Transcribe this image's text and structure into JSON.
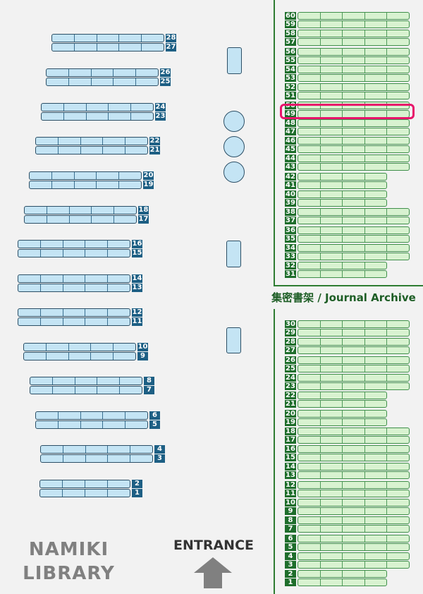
{
  "library_name": "NAMIKI LIBRARY",
  "entrance_label": "ENTRANCE",
  "archive_title": "集密書架 / Journal Archive",
  "highlighted_shelf": "49",
  "colors": {
    "open_shelf": "#c4e4f4",
    "archive_shelf": "#d8f2d0",
    "highlight": "#e8156b",
    "archive_border": "#2e7d32"
  },
  "open_shelves": [
    {
      "label": "28",
      "cells": 5
    },
    {
      "label": "27",
      "cells": 5
    },
    {
      "label": "26",
      "cells": 5
    },
    {
      "label": "25",
      "cells": 5
    },
    {
      "label": "24",
      "cells": 5
    },
    {
      "label": "23",
      "cells": 5
    },
    {
      "label": "22",
      "cells": 5
    },
    {
      "label": "21",
      "cells": 5
    },
    {
      "label": "20",
      "cells": 5
    },
    {
      "label": "19",
      "cells": 5
    },
    {
      "label": "18",
      "cells": 5
    },
    {
      "label": "17",
      "cells": 5
    },
    {
      "label": "16",
      "cells": 5
    },
    {
      "label": "15",
      "cells": 5
    },
    {
      "label": "14",
      "cells": 5
    },
    {
      "label": "13",
      "cells": 5
    },
    {
      "label": "12",
      "cells": 5
    },
    {
      "label": "11",
      "cells": 5
    },
    {
      "label": "10",
      "cells": 5
    },
    {
      "label": "9",
      "cells": 5
    },
    {
      "label": "8",
      "cells": 5
    },
    {
      "label": "7",
      "cells": 5
    },
    {
      "label": "6",
      "cells": 5
    },
    {
      "label": "5",
      "cells": 5
    },
    {
      "label": "4",
      "cells": 5
    },
    {
      "label": "3",
      "cells": 5
    },
    {
      "label": "2",
      "cells": 4
    },
    {
      "label": "1",
      "cells": 4
    }
  ],
  "archive_upper": [
    {
      "label": "60",
      "cells": 5
    },
    {
      "label": "59",
      "cells": 5
    },
    {
      "label": "58",
      "cells": 5
    },
    {
      "label": "57",
      "cells": 5
    },
    {
      "label": "56",
      "cells": 5
    },
    {
      "label": "55",
      "cells": 5
    },
    {
      "label": "54",
      "cells": 5
    },
    {
      "label": "53",
      "cells": 5
    },
    {
      "label": "52",
      "cells": 5
    },
    {
      "label": "51",
      "cells": 5
    },
    {
      "label": "50",
      "cells": 5
    },
    {
      "label": "49",
      "cells": 5
    },
    {
      "label": "48",
      "cells": 5
    },
    {
      "label": "47",
      "cells": 5
    },
    {
      "label": "46",
      "cells": 5
    },
    {
      "label": "45",
      "cells": 5
    },
    {
      "label": "44",
      "cells": 5
    },
    {
      "label": "43",
      "cells": 5
    },
    {
      "label": "42",
      "cells": 4
    },
    {
      "label": "41",
      "cells": 4
    },
    {
      "label": "40",
      "cells": 4
    },
    {
      "label": "39",
      "cells": 4
    },
    {
      "label": "38",
      "cells": 5
    },
    {
      "label": "37",
      "cells": 5
    },
    {
      "label": "36",
      "cells": 5
    },
    {
      "label": "35",
      "cells": 5
    },
    {
      "label": "34",
      "cells": 5
    },
    {
      "label": "33",
      "cells": 5
    },
    {
      "label": "32",
      "cells": 4
    },
    {
      "label": "31",
      "cells": 4
    }
  ],
  "archive_lower": [
    {
      "label": "30",
      "cells": 5
    },
    {
      "label": "29",
      "cells": 5
    },
    {
      "label": "28",
      "cells": 5
    },
    {
      "label": "27",
      "cells": 5
    },
    {
      "label": "26",
      "cells": 5
    },
    {
      "label": "25",
      "cells": 5
    },
    {
      "label": "24",
      "cells": 5
    },
    {
      "label": "23",
      "cells": 5
    },
    {
      "label": "22",
      "cells": 4
    },
    {
      "label": "21",
      "cells": 4
    },
    {
      "label": "20",
      "cells": 4
    },
    {
      "label": "19",
      "cells": 4
    },
    {
      "label": "18",
      "cells": 5
    },
    {
      "label": "17",
      "cells": 5
    },
    {
      "label": "16",
      "cells": 5
    },
    {
      "label": "15",
      "cells": 5
    },
    {
      "label": "14",
      "cells": 5
    },
    {
      "label": "13",
      "cells": 5
    },
    {
      "label": "12",
      "cells": 5
    },
    {
      "label": "11",
      "cells": 5
    },
    {
      "label": "10",
      "cells": 5
    },
    {
      "label": "9",
      "cells": 5
    },
    {
      "label": "8",
      "cells": 5
    },
    {
      "label": "7",
      "cells": 5
    },
    {
      "label": "6",
      "cells": 5
    },
    {
      "label": "5",
      "cells": 5
    },
    {
      "label": "4",
      "cells": 5
    },
    {
      "label": "3",
      "cells": 5
    },
    {
      "label": "2",
      "cells": 4
    },
    {
      "label": "1",
      "cells": 4
    }
  ]
}
